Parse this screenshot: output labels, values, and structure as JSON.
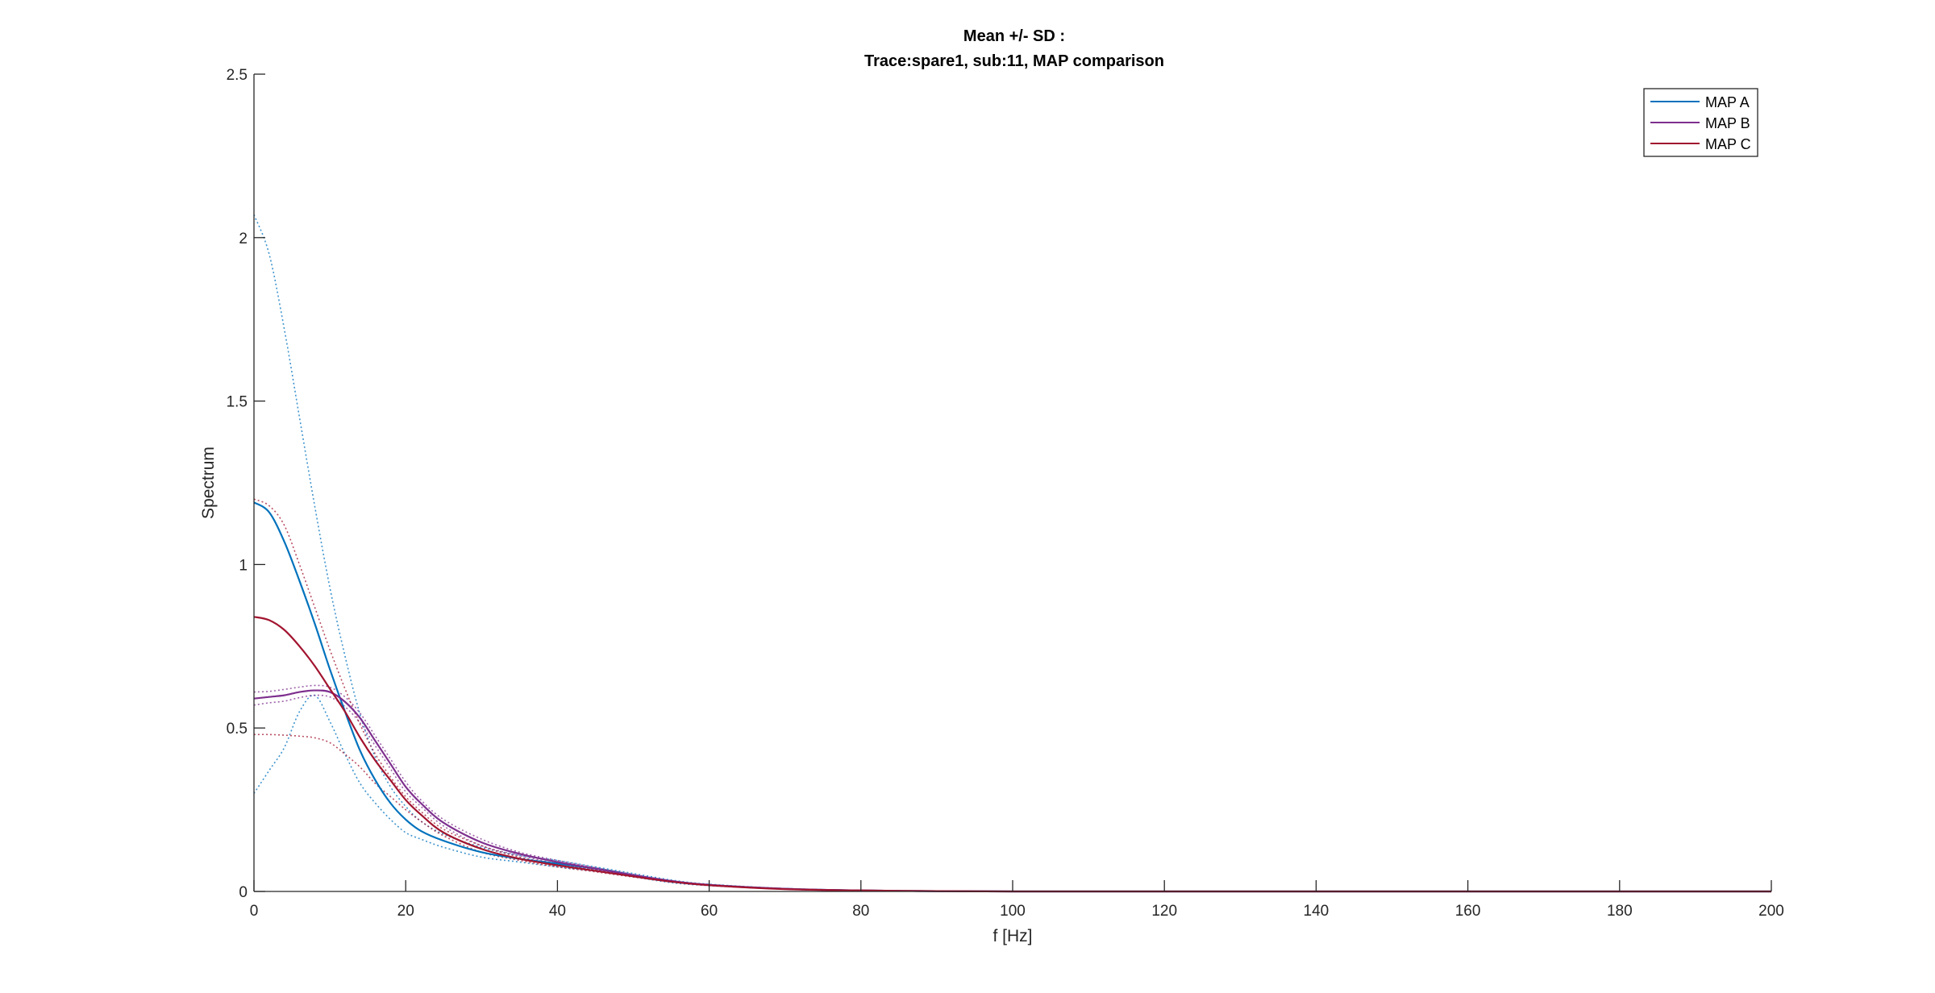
{
  "chart_data": {
    "type": "line",
    "title_lines": [
      "Mean +/- SD :",
      "Trace:spare1, sub:11, MAP comparison"
    ],
    "xlabel": "f [Hz]",
    "ylabel": "Spectrum",
    "xlim": [
      0,
      200
    ],
    "ylim": [
      0,
      2.5
    ],
    "xticks": [
      0,
      20,
      40,
      60,
      80,
      100,
      120,
      140,
      160,
      180,
      200
    ],
    "yticks": [
      0,
      0.5,
      1,
      1.5,
      2,
      2.5
    ],
    "xtick_labels": [
      "0",
      "20",
      "40",
      "60",
      "80",
      "100",
      "120",
      "140",
      "160",
      "180",
      "200"
    ],
    "ytick_labels": [
      "0",
      "0.5",
      "1",
      "1.5",
      "2",
      "2.5"
    ],
    "grid": false,
    "legend_position": "top-right",
    "x": [
      0,
      2,
      4,
      6,
      8,
      10,
      12,
      14,
      16,
      18,
      20,
      22,
      25,
      30,
      35,
      40,
      45,
      50,
      55,
      60,
      70,
      80,
      90,
      100,
      120,
      150,
      200
    ],
    "series": [
      {
        "name": "MAP A",
        "color": "#0072BD",
        "values": [
          1.19,
          1.16,
          1.07,
          0.95,
          0.82,
          0.68,
          0.55,
          0.43,
          0.34,
          0.27,
          0.22,
          0.185,
          0.155,
          0.12,
          0.1,
          0.085,
          0.07,
          0.05,
          0.03,
          0.02,
          0.008,
          0.003,
          0.001,
          0,
          0,
          0,
          0
        ],
        "upper": [
          2.07,
          1.95,
          1.72,
          1.45,
          1.18,
          0.93,
          0.72,
          0.54,
          0.41,
          0.32,
          0.26,
          0.215,
          0.175,
          0.135,
          0.11,
          0.095,
          0.075,
          0.055,
          0.035,
          0.022,
          0.009,
          0.003,
          0.001,
          0,
          0,
          0,
          0
        ],
        "lower": [
          0.3,
          0.37,
          0.44,
          0.55,
          0.6,
          0.52,
          0.42,
          0.33,
          0.27,
          0.22,
          0.18,
          0.16,
          0.135,
          0.105,
          0.09,
          0.075,
          0.062,
          0.045,
          0.027,
          0.018,
          0.007,
          0.002,
          0.001,
          0,
          0,
          0,
          0
        ]
      },
      {
        "name": "MAP B",
        "color": "#7E2F8E",
        "values": [
          0.59,
          0.595,
          0.6,
          0.61,
          0.615,
          0.61,
          0.58,
          0.53,
          0.46,
          0.39,
          0.32,
          0.27,
          0.21,
          0.15,
          0.115,
          0.09,
          0.07,
          0.05,
          0.032,
          0.02,
          0.008,
          0.003,
          0.001,
          0,
          0,
          0,
          0
        ],
        "upper": [
          0.61,
          0.612,
          0.618,
          0.625,
          0.63,
          0.625,
          0.595,
          0.545,
          0.475,
          0.405,
          0.335,
          0.28,
          0.22,
          0.16,
          0.12,
          0.095,
          0.073,
          0.052,
          0.033,
          0.021,
          0.008,
          0.003,
          0.001,
          0,
          0,
          0,
          0
        ],
        "lower": [
          0.57,
          0.577,
          0.582,
          0.593,
          0.6,
          0.595,
          0.565,
          0.515,
          0.445,
          0.375,
          0.305,
          0.26,
          0.2,
          0.14,
          0.11,
          0.085,
          0.067,
          0.048,
          0.031,
          0.019,
          0.007,
          0.003,
          0.001,
          0,
          0,
          0,
          0
        ]
      },
      {
        "name": "MAP C",
        "color": "#A2142F",
        "values": [
          0.84,
          0.83,
          0.8,
          0.75,
          0.69,
          0.62,
          0.55,
          0.47,
          0.4,
          0.34,
          0.28,
          0.235,
          0.18,
          0.13,
          0.1,
          0.08,
          0.063,
          0.046,
          0.03,
          0.019,
          0.007,
          0.003,
          0.001,
          0,
          0,
          0,
          0
        ],
        "upper": [
          1.2,
          1.18,
          1.12,
          1.0,
          0.87,
          0.74,
          0.62,
          0.51,
          0.42,
          0.35,
          0.29,
          0.245,
          0.19,
          0.14,
          0.105,
          0.085,
          0.066,
          0.048,
          0.031,
          0.02,
          0.008,
          0.003,
          0.001,
          0,
          0,
          0,
          0
        ],
        "lower": [
          0.48,
          0.48,
          0.478,
          0.475,
          0.47,
          0.455,
          0.42,
          0.38,
          0.33,
          0.29,
          0.25,
          0.215,
          0.17,
          0.12,
          0.095,
          0.075,
          0.06,
          0.044,
          0.029,
          0.018,
          0.007,
          0.002,
          0.001,
          0,
          0,
          0,
          0
        ]
      }
    ]
  }
}
